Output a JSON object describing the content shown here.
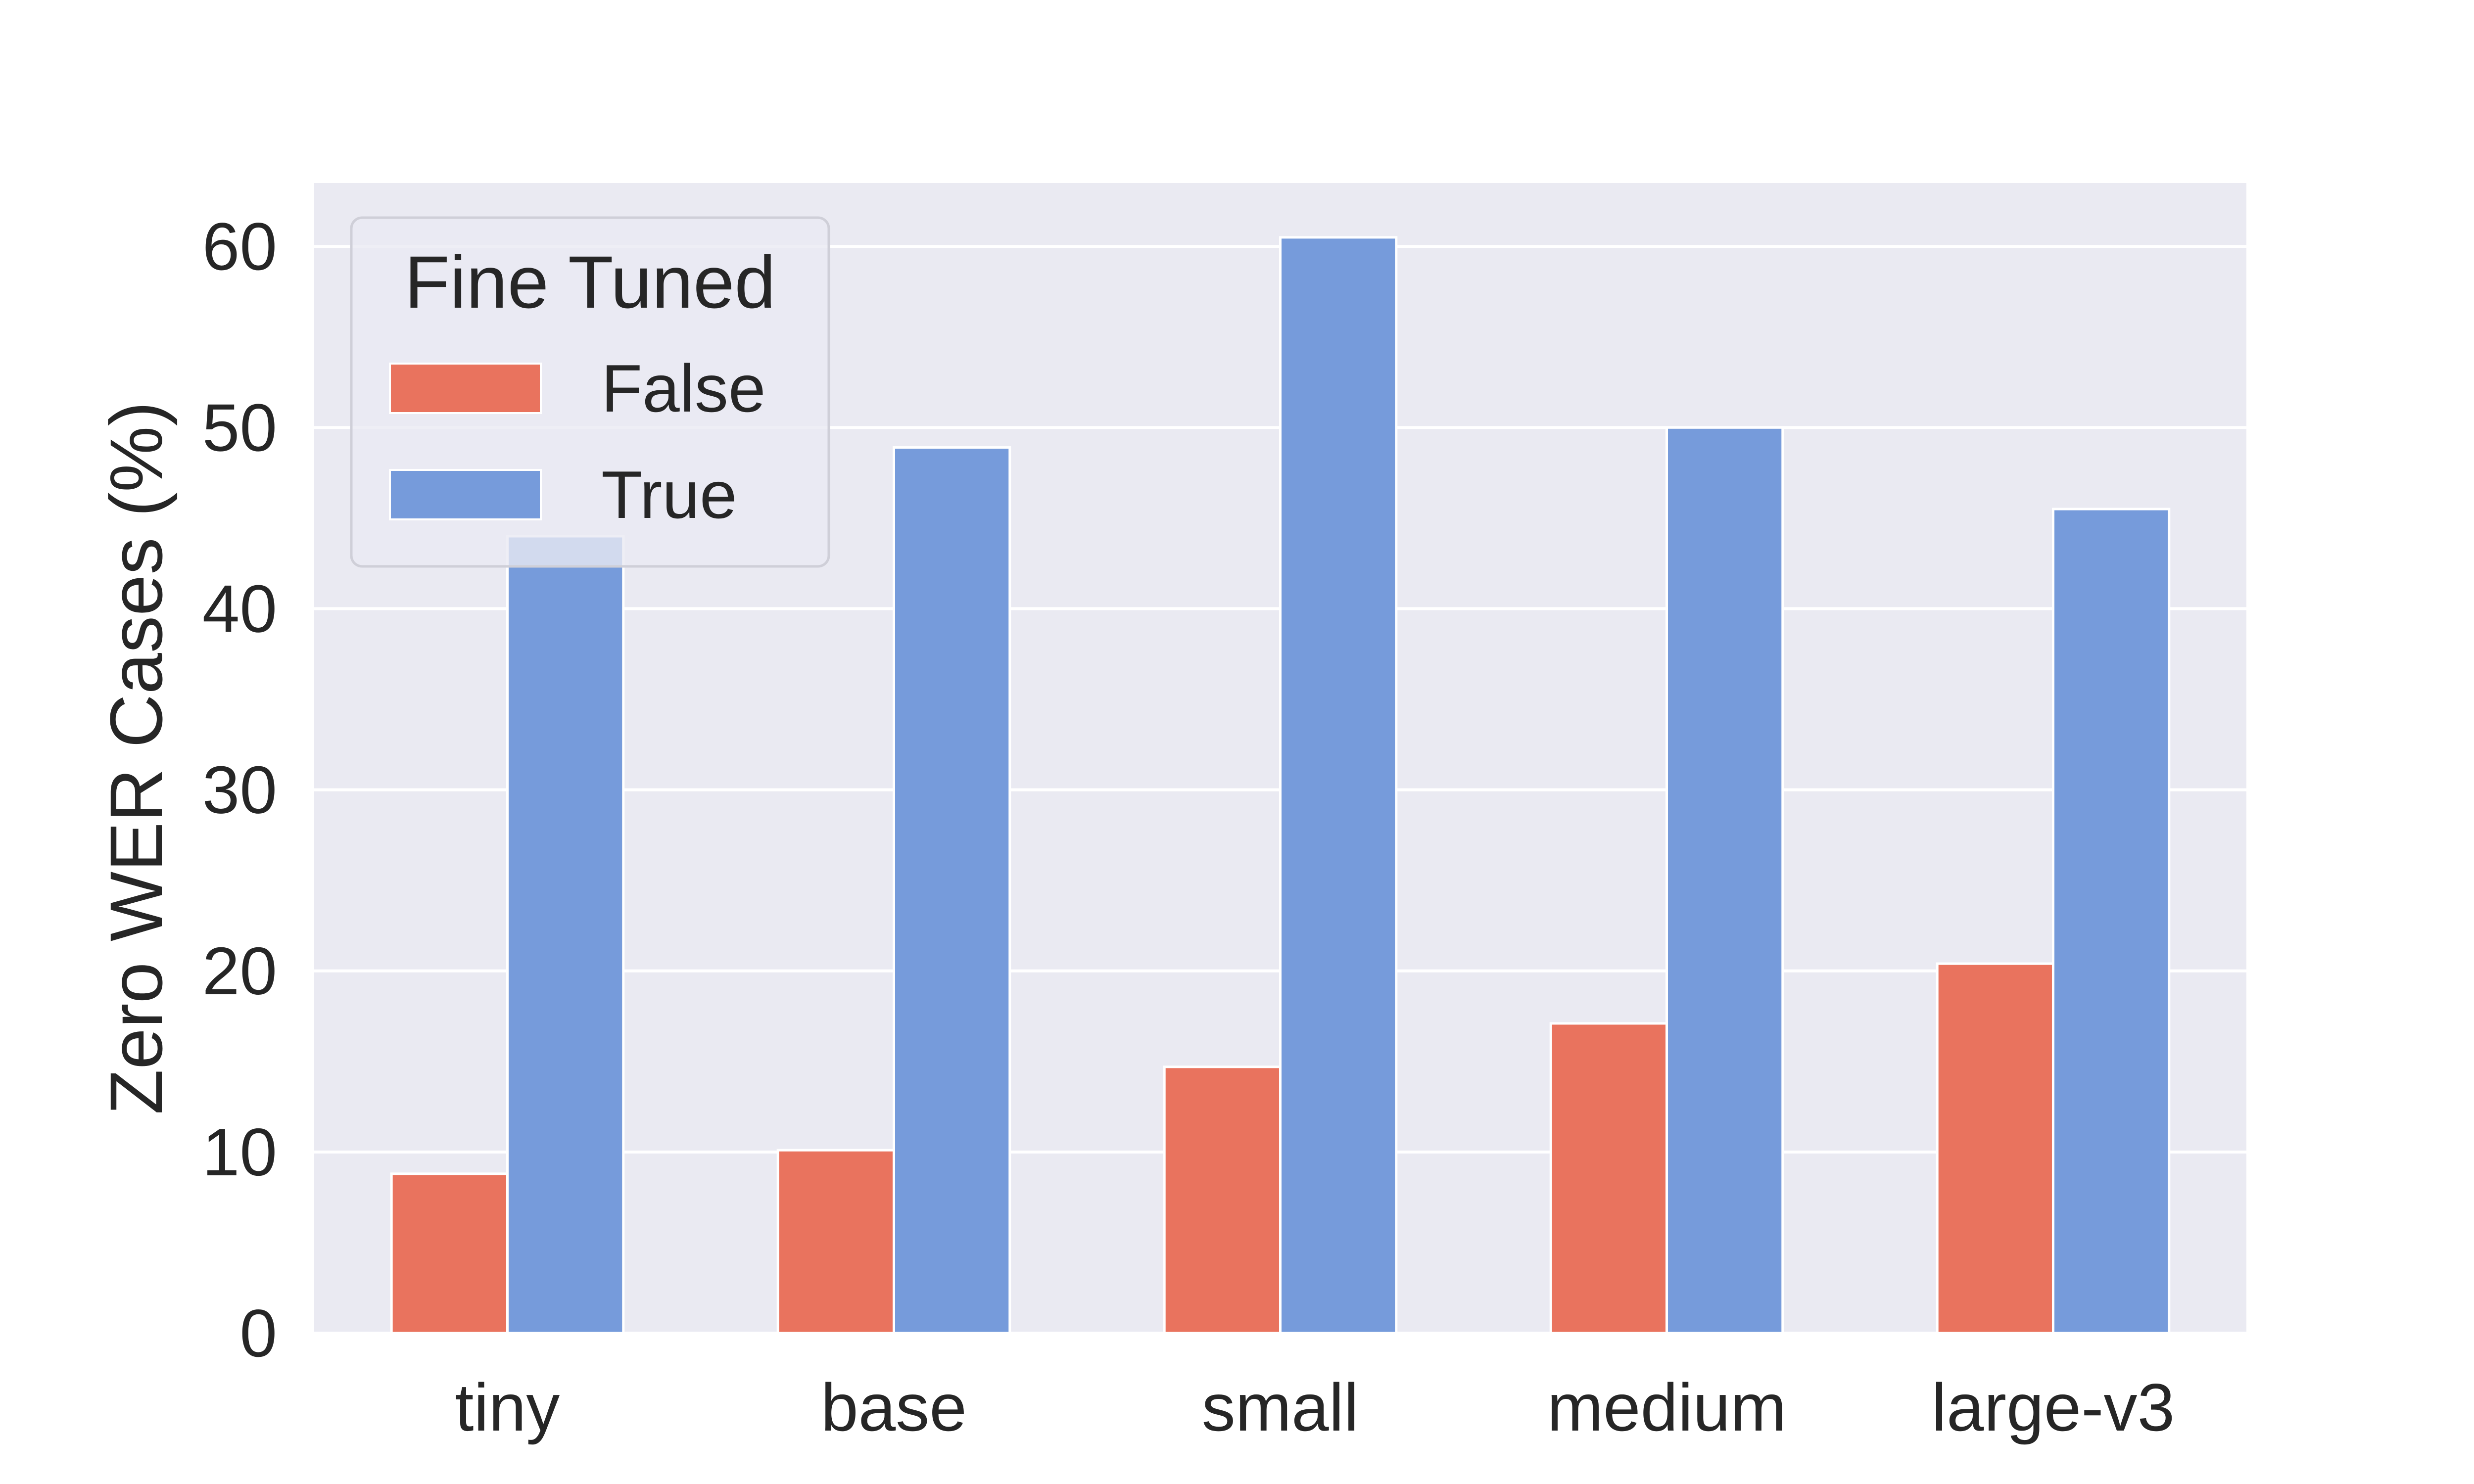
{
  "chart_data": {
    "type": "bar",
    "title": "",
    "xlabel": "",
    "ylabel": "Zero WER Cases (%)",
    "categories": [
      "tiny",
      "base",
      "small",
      "medium",
      "large-v3"
    ],
    "series": [
      {
        "name": "False",
        "values": [
          8.8,
          10.1,
          14.7,
          17.1,
          20.4
        ],
        "color": "#e9735e"
      },
      {
        "name": "True",
        "values": [
          44.0,
          48.9,
          60.5,
          50.0,
          45.5
        ],
        "color": "#769bdb"
      }
    ],
    "ylim": [
      0,
      63.5
    ],
    "yticks": [
      0,
      10,
      20,
      30,
      40,
      50,
      60
    ],
    "grid": true,
    "legend": {
      "title": "Fine Tuned",
      "placement": "top-left"
    },
    "colors": {
      "plot_background": "#eaeaf2",
      "grid": "#ffffff",
      "text": "#262626"
    }
  }
}
